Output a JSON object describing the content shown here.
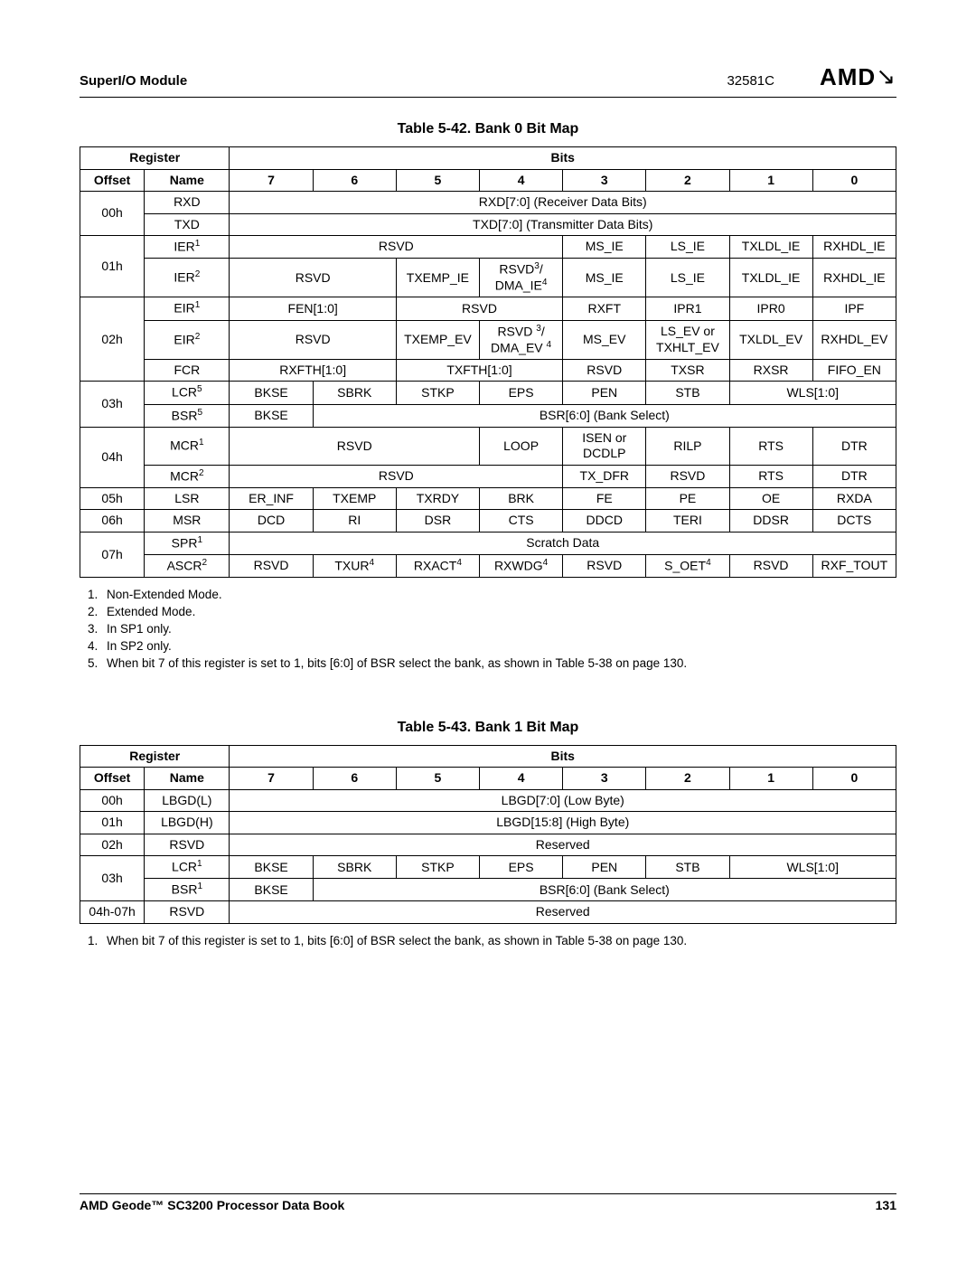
{
  "header": {
    "module": "SuperI/O Module",
    "doc_id": "32581C",
    "logo_text": "AMD"
  },
  "footer": {
    "book": "AMD Geode™ SC3200 Processor Data Book",
    "page": "131"
  },
  "table42": {
    "title": "Table 5-42.  Bank 0 Bit Map",
    "register_label": "Register",
    "bits_label": "Bits",
    "offset_label": "Offset",
    "name_label": "Name",
    "bit_headers": [
      "7",
      "6",
      "5",
      "4",
      "3",
      "2",
      "1",
      "0"
    ],
    "rows": {
      "r00_rxd": {
        "offset": "00h",
        "name": "RXD",
        "span": "RXD[7:0] (Receiver Data Bits)"
      },
      "r00_txd": {
        "name": "TXD",
        "span": "TXD[7:0] (Transmitter Data Bits)"
      },
      "r01_ier1": {
        "offset": "01h",
        "name": "IER",
        "sup": "1",
        "rsvd": "RSVD",
        "b3": "MS_IE",
        "b2": "LS_IE",
        "b1": "TXLDL_IE",
        "b0": "RXHDL_IE"
      },
      "r01_ier2": {
        "name": "IER",
        "sup": "2",
        "rsvd": "RSVD",
        "b5": "TXEMP_IE",
        "b4a": "RSVD",
        "b4sup": "3",
        "b4b": "DMA_IE",
        "b4bsup": "4",
        "b3": "MS_IE",
        "b2": "LS_IE",
        "b1": "TXLDL_IE",
        "b0": "RXHDL_IE"
      },
      "r02_eir1": {
        "offset": "02h",
        "name": "EIR",
        "sup": "1",
        "fen": "FEN[1:0]",
        "rsvd": "RSVD",
        "b3": "RXFT",
        "b2": "IPR1",
        "b1": "IPR0",
        "b0": "IPF"
      },
      "r02_eir2": {
        "name": "EIR",
        "sup": "2",
        "rsvd": "RSVD",
        "b5": "TXEMP_EV",
        "b4a": "RSVD ",
        "b4asup": "3",
        "b4b": "DMA_EV ",
        "b4bsup": "4",
        "b3": "MS_EV",
        "b2a": "LS_EV or",
        "b2b": "TXHLT_EV",
        "b1": "TXLDL_EV",
        "b0": "RXHDL_EV"
      },
      "r02_fcr": {
        "name": "FCR",
        "b76": "RXFTH[1:0]",
        "b54": "TXFTH[1:0]",
        "b3": "RSVD",
        "b2": "TXSR",
        "b1": "RXSR",
        "b0": "FIFO_EN"
      },
      "r03_lcr": {
        "offset": "03h",
        "name": "LCR",
        "sup": "5",
        "b7": "BKSE",
        "b6": "SBRK",
        "b5": "STKP",
        "b4": "EPS",
        "b3": "PEN",
        "b2": "STB",
        "b10": "WLS[1:0]"
      },
      "r03_bsr": {
        "name": "BSR",
        "sup": "5",
        "b7": "BKSE",
        "rest": "BSR[6:0] (Bank Select)"
      },
      "r04_mcr1": {
        "offset": "04h",
        "name": "MCR",
        "sup": "1",
        "rsvd": "RSVD",
        "b4": "LOOP",
        "b3a": "ISEN or",
        "b3b": "DCDLP",
        "b2": "RILP",
        "b1": "RTS",
        "b0": "DTR"
      },
      "r04_mcr2": {
        "name": "MCR",
        "sup": "2",
        "rsvd": "RSVD",
        "b3": "TX_DFR",
        "b2": "RSVD",
        "b1": "RTS",
        "b0": "DTR"
      },
      "r05_lsr": {
        "offset": "05h",
        "name": "LSR",
        "b7": "ER_INF",
        "b6": "TXEMP",
        "b5": "TXRDY",
        "b4": "BRK",
        "b3": "FE",
        "b2": "PE",
        "b1": "OE",
        "b0": "RXDA"
      },
      "r06_msr": {
        "offset": "06h",
        "name": "MSR",
        "b7": "DCD",
        "b6": "RI",
        "b5": "DSR",
        "b4": "CTS",
        "b3": "DDCD",
        "b2": "TERI",
        "b1": "DDSR",
        "b0": "DCTS"
      },
      "r07_spr": {
        "offset": "07h",
        "name": "SPR",
        "sup": "1",
        "span": "Scratch Data"
      },
      "r07_ascr": {
        "name": "ASCR",
        "sup": "2",
        "b7": "RSVD",
        "b6": "TXUR",
        "b6sup": "4",
        "b5": "RXACT",
        "b5sup": "4",
        "b4": "RXWDG",
        "b4sup": "4",
        "b3": "RSVD",
        "b2": "S_OET",
        "b2sup": "4",
        "b1": "RSVD",
        "b0": "RXF_TOUT"
      }
    },
    "footnotes": [
      "Non-Extended Mode.",
      "Extended Mode.",
      "In SP1 only.",
      "In SP2 only.",
      "When bit 7 of this register is set to 1, bits [6:0] of BSR select the bank, as shown in Table 5-38 on page 130."
    ]
  },
  "table43": {
    "title": "Table 5-43.  Bank 1 Bit Map",
    "register_label": "Register",
    "bits_label": "Bits",
    "offset_label": "Offset",
    "name_label": "Name",
    "bit_headers": [
      "7",
      "6",
      "5",
      "4",
      "3",
      "2",
      "1",
      "0"
    ],
    "rows": {
      "r00": {
        "offset": "00h",
        "name": "LBGD(L)",
        "span": "LBGD[7:0] (Low Byte)"
      },
      "r01": {
        "offset": "01h",
        "name": "LBGD(H)",
        "span": "LBGD[15:8] (High Byte)"
      },
      "r02": {
        "offset": "02h",
        "name": "RSVD",
        "span": "Reserved"
      },
      "r03_lcr": {
        "offset": "03h",
        "name": "LCR",
        "sup": "1",
        "b7": "BKSE",
        "b6": "SBRK",
        "b5": "STKP",
        "b4": "EPS",
        "b3": "PEN",
        "b2": "STB",
        "b10": "WLS[1:0]"
      },
      "r03_bsr": {
        "name": "BSR",
        "sup": "1",
        "b7": "BKSE",
        "rest": "BSR[6:0] (Bank Select)"
      },
      "r04": {
        "offset": "04h-07h",
        "name": "RSVD",
        "span": "Reserved"
      }
    },
    "footnotes": [
      "When bit 7 of this register is set to 1, bits [6:0] of BSR select the bank, as shown in Table 5-38 on page 130."
    ]
  }
}
